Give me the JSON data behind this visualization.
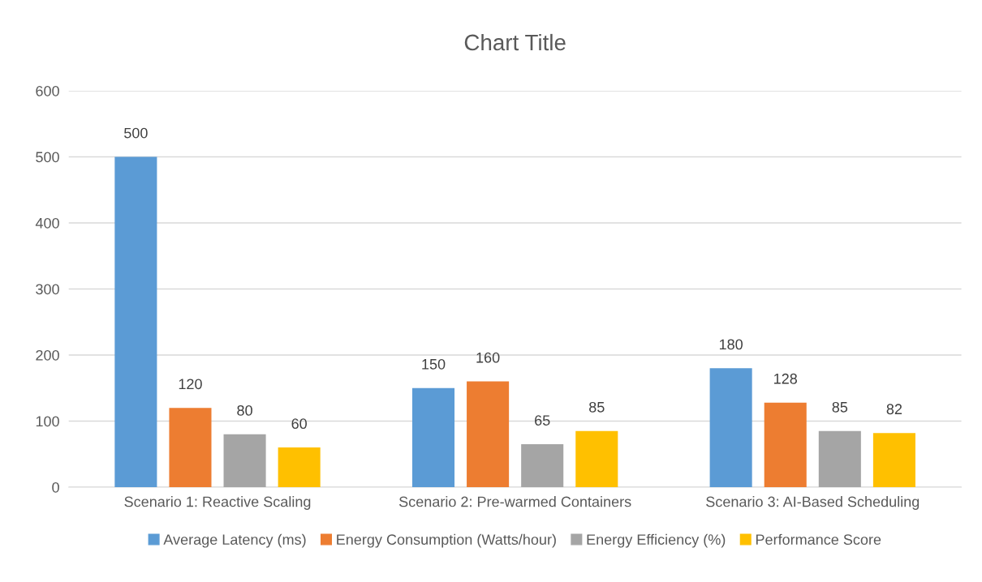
{
  "chart_data": {
    "type": "bar",
    "title": "Chart Title",
    "categories": [
      "Scenario 1: Reactive Scaling",
      "Scenario 2: Pre-warmed Containers",
      "Scenario 3: AI-Based Scheduling"
    ],
    "series": [
      {
        "name": "Average Latency (ms)",
        "color": "#5b9bd5",
        "values": [
          500,
          150,
          180
        ]
      },
      {
        "name": "Energy Consumption (Watts/hour)",
        "color": "#ed7d31",
        "values": [
          120,
          160,
          128
        ]
      },
      {
        "name": "Energy Efficiency (%)",
        "color": "#a5a5a5",
        "values": [
          80,
          65,
          85
        ]
      },
      {
        "name": "Performance Score",
        "color": "#ffc000",
        "values": [
          60,
          85,
          82
        ]
      }
    ],
    "ylim": [
      0,
      600
    ],
    "yticks": [
      0,
      100,
      200,
      300,
      400,
      500,
      600
    ],
    "grid": "y",
    "legend": "bottom",
    "data_labels": true
  }
}
